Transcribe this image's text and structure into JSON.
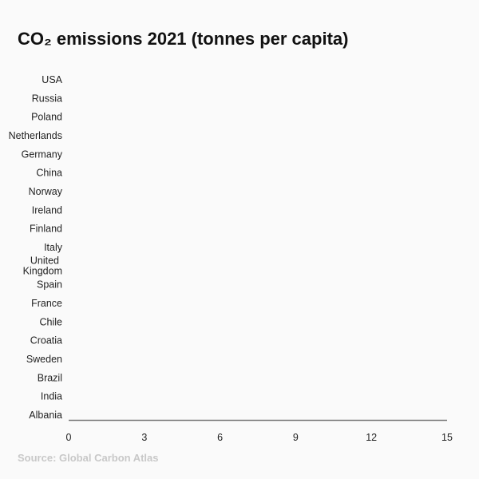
{
  "chart_data": {
    "type": "bar",
    "orientation": "horizontal",
    "title": "CO₂ emissions 2021 (tonnes per capita)",
    "categories": [
      "USA",
      "Russia",
      "Poland",
      "Netherlands",
      "Germany",
      "China",
      "Norway",
      "Ireland",
      "Finland",
      "Italy",
      "United Kingdom",
      "Spain",
      "France",
      "Chile",
      "Croatia",
      "Sweden",
      "Brazil",
      "India",
      "Albania"
    ],
    "xlim": [
      0,
      15
    ],
    "xticks": [
      "0",
      "3",
      "6",
      "9",
      "12",
      "15"
    ],
    "grid": false,
    "source": "Source: Global Carbon Atlas",
    "colors": {
      "axis": "#777777",
      "source": "#c8c8c8",
      "background": "#fafafa"
    }
  }
}
